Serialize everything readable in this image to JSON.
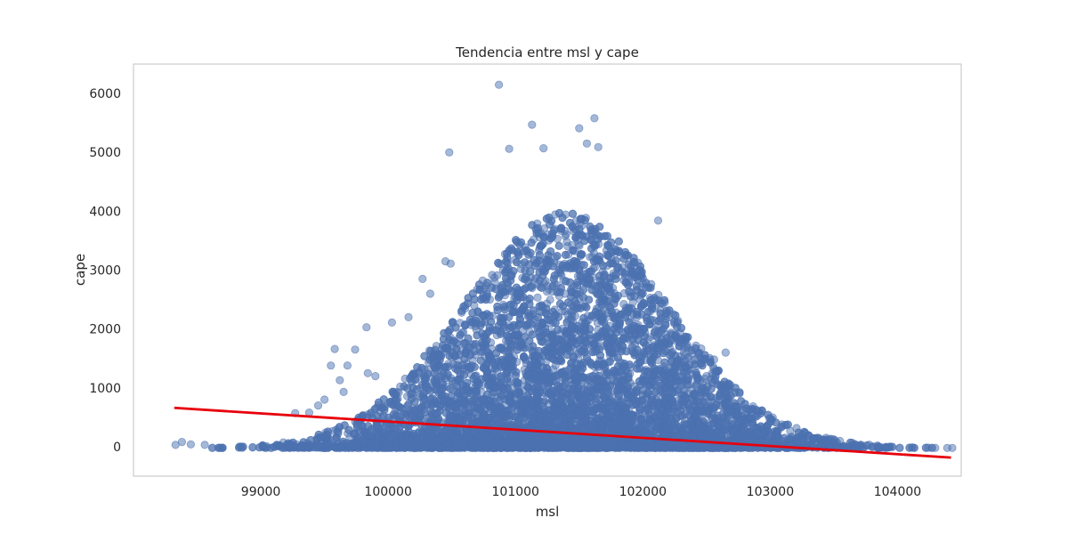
{
  "chart_data": {
    "type": "scatter",
    "title": "Tendencia entre msl y cape",
    "xlabel": "msl",
    "ylabel": "cape",
    "xlim": [
      98000,
      104500
    ],
    "ylim": [
      -500,
      6500
    ],
    "xticks": [
      99000,
      100000,
      101000,
      102000,
      103000,
      104000
    ],
    "yticks": [
      0,
      1000,
      2000,
      3000,
      4000,
      5000,
      6000
    ],
    "grid": false,
    "colors": {
      "points": "#4c72b0",
      "trend": "#e8000b",
      "frame": "#cccccc",
      "text": "#262626"
    },
    "series": [
      {
        "type": "scatter",
        "alpha": 0.5,
        "outliers": [
          {
            "x": 100870,
            "y": 6150
          },
          {
            "x": 101130,
            "y": 5470
          },
          {
            "x": 100950,
            "y": 5060
          },
          {
            "x": 100480,
            "y": 5000
          },
          {
            "x": 101620,
            "y": 5580
          },
          {
            "x": 101500,
            "y": 5410
          },
          {
            "x": 101560,
            "y": 5150
          },
          {
            "x": 101650,
            "y": 5090
          },
          {
            "x": 101220,
            "y": 5070
          },
          {
            "x": 102120,
            "y": 3840
          },
          {
            "x": 100450,
            "y": 3150
          },
          {
            "x": 100490,
            "y": 3110
          },
          {
            "x": 100270,
            "y": 2850
          },
          {
            "x": 100330,
            "y": 2600
          },
          {
            "x": 100160,
            "y": 2200
          },
          {
            "x": 100030,
            "y": 2110
          },
          {
            "x": 99830,
            "y": 2030
          },
          {
            "x": 99740,
            "y": 1650
          },
          {
            "x": 99580,
            "y": 1660
          },
          {
            "x": 99550,
            "y": 1380
          },
          {
            "x": 99680,
            "y": 1380
          },
          {
            "x": 99840,
            "y": 1250
          },
          {
            "x": 99900,
            "y": 1200
          },
          {
            "x": 99620,
            "y": 1130
          },
          {
            "x": 99650,
            "y": 930
          },
          {
            "x": 99500,
            "y": 800
          },
          {
            "x": 99450,
            "y": 700
          },
          {
            "x": 98330,
            "y": 30
          },
          {
            "x": 98380,
            "y": 80
          },
          {
            "x": 98450,
            "y": 40
          },
          {
            "x": 98560,
            "y": 30
          },
          {
            "x": 99270,
            "y": 570
          },
          {
            "x": 99380,
            "y": 580
          },
          {
            "x": 104390,
            "y": -20
          },
          {
            "x": 104430,
            "y": -20
          },
          {
            "x": 102650,
            "y": 1600
          },
          {
            "x": 102560,
            "y": 1480
          }
        ],
        "density": {
          "x_center": 101400,
          "x_spread": 900,
          "x_min": 98600,
          "x_max": 104300,
          "peak": 4000,
          "decay": 1150,
          "n": 9000
        }
      },
      {
        "type": "line",
        "points": [
          {
            "x": 98320,
            "y": 660
          },
          {
            "x": 104420,
            "y": -185
          }
        ]
      }
    ]
  }
}
